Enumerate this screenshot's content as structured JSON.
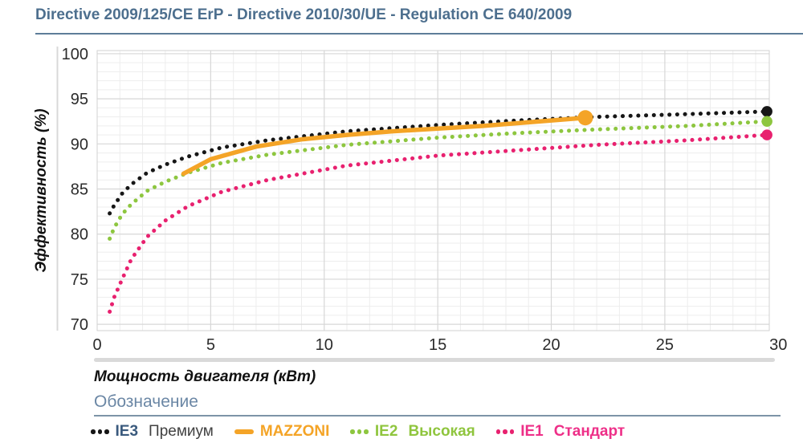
{
  "header": {
    "title": "Directive 2009/125/CE ErP - Directive 2010/30/UE - Regulation CE 640/2009"
  },
  "legend": {
    "heading": "Обозначение",
    "items": [
      {
        "prefix": "IE3",
        "suffix": "Премиум",
        "marker": "dots",
        "marker_color": "#161616",
        "prefix_color": "#3a5a7d",
        "suffix_color": "#414141",
        "suffix_bold": false
      },
      {
        "prefix": "MAZZONI",
        "suffix": "",
        "marker": "line",
        "marker_color": "#f4a427",
        "prefix_color": "#f4a427",
        "suffix_color": "#f4a427",
        "suffix_bold": false
      },
      {
        "prefix": "IE2",
        "suffix": "Высокая",
        "marker": "dots",
        "marker_color": "#8dc63f",
        "prefix_color": "#8fc53e",
        "suffix_color": "#8fc53e",
        "suffix_bold": true
      },
      {
        "prefix": "IE1",
        "suffix": "Стандарт",
        "marker": "dots",
        "marker_color": "#e8216f",
        "prefix_color": "#ee2f88",
        "suffix_color": "#ee2f88",
        "suffix_bold": true
      }
    ]
  },
  "chart_data": {
    "type": "line",
    "title": "Directive 2009/125/CE ErP - Directive 2010/30/UE - Regulation CE 640/2009",
    "xlabel": "Мощность двигателя (кВт)",
    "ylabel": "Эффективность (%)",
    "xlim": [
      0,
      30
    ],
    "ylim": [
      70,
      100
    ],
    "x_ticks": [
      0,
      5,
      10,
      15,
      20,
      25,
      30
    ],
    "y_ticks": [
      70,
      75,
      80,
      85,
      90,
      95,
      100
    ],
    "minor_grid_step": 1,
    "grid": true,
    "legend_position": "bottom",
    "colors": {
      "minor_grid": "#ededed",
      "major_grid": "#d7d7d7",
      "border": "#d2d2d2",
      "axis_separator": "#d9d9d9",
      "scrollbar": "#d9d9d9"
    },
    "series": [
      {
        "name": "IE3 Премиум",
        "style": "dotted",
        "color": "#161616",
        "end_marker": true,
        "x": [
          0.55,
          0.75,
          1.1,
          1.5,
          2.2,
          3,
          4,
          5.5,
          7.5,
          11,
          15,
          18.5,
          22,
          26,
          29.5
        ],
        "y": [
          82.3,
          83.2,
          84.5,
          85.5,
          86.8,
          87.7,
          88.6,
          89.6,
          90.4,
          91.4,
          92.1,
          92.6,
          93.0,
          93.3,
          93.6
        ]
      },
      {
        "name": "IE2 Высокая",
        "style": "dotted",
        "color": "#8dc63f",
        "end_marker": true,
        "x": [
          0.55,
          0.75,
          1.1,
          1.5,
          2.2,
          3,
          4,
          5.5,
          7.5,
          11,
          15,
          18.5,
          22,
          26,
          29.5
        ],
        "y": [
          79.5,
          80.7,
          82.2,
          83.3,
          84.8,
          85.8,
          86.8,
          87.9,
          88.8,
          89.9,
          90.7,
          91.2,
          91.6,
          92.0,
          92.5
        ]
      },
      {
        "name": "IE1 Стандарт",
        "style": "dotted",
        "color": "#e8216f",
        "end_marker": true,
        "x": [
          0.55,
          0.75,
          1.1,
          1.5,
          2.2,
          3,
          4,
          5.5,
          7.5,
          11,
          15,
          18.5,
          22,
          26,
          29.5
        ],
        "y": [
          71.4,
          73.0,
          75.0,
          77.2,
          79.7,
          81.5,
          83.1,
          84.7,
          86.0,
          87.6,
          88.7,
          89.3,
          89.9,
          90.4,
          91.0
        ]
      },
      {
        "name": "MAZZONI",
        "style": "solid",
        "color": "#f4a427",
        "end_marker": true,
        "x": [
          3.8,
          5,
          7,
          9,
          11,
          13,
          15,
          17,
          19,
          21.5
        ],
        "y": [
          86.7,
          88.3,
          89.7,
          90.5,
          91.0,
          91.4,
          91.7,
          92.0,
          92.4,
          92.9
        ]
      }
    ],
    "highlight_point": {
      "series": "MAZZONI",
      "x": 21.5,
      "y": 92.9
    }
  }
}
